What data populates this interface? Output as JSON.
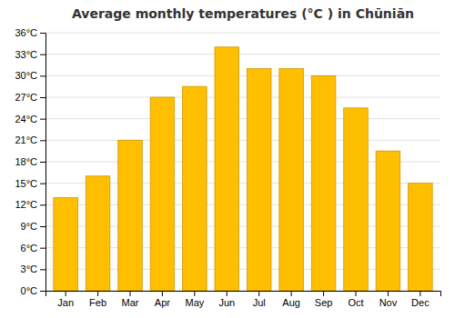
{
  "chart_data": {
    "type": "bar",
    "title": "Average monthly temperatures (°C ) in Chūniān",
    "categories": [
      "Jan",
      "Feb",
      "Mar",
      "Apr",
      "May",
      "Jun",
      "Jul",
      "Aug",
      "Sep",
      "Oct",
      "Nov",
      "Dec"
    ],
    "values": [
      13,
      16,
      21,
      27,
      28.5,
      34,
      31,
      31,
      30,
      25.5,
      19.5,
      15
    ],
    "color": "#FFBE00",
    "ylim": [
      0,
      36
    ],
    "yticks": [
      {
        "value": 0,
        "label": "0°C"
      },
      {
        "value": 3,
        "label": "3°C"
      },
      {
        "value": 6,
        "label": "6°C"
      },
      {
        "value": 9,
        "label": "9°C"
      },
      {
        "value": 12,
        "label": "12°C"
      },
      {
        "value": 15,
        "label": "15°C"
      },
      {
        "value": 18,
        "label": "18°C"
      },
      {
        "value": 21,
        "label": "21°C"
      },
      {
        "value": 24,
        "label": "24°C"
      },
      {
        "value": 27,
        "label": "27°C"
      },
      {
        "value": 30,
        "label": "30°C"
      },
      {
        "value": 33,
        "label": "33°C"
      },
      {
        "value": 36,
        "label": "36°C"
      }
    ],
    "grid": true
  }
}
